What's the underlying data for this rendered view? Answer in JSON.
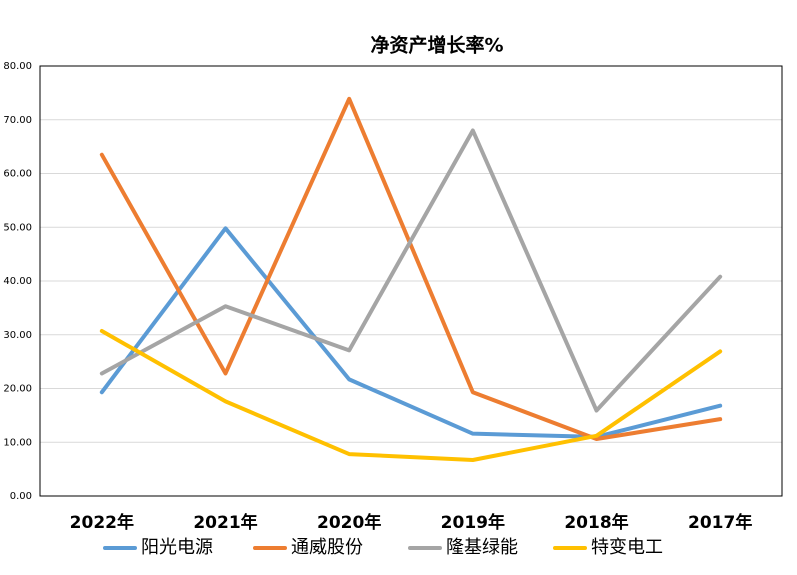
{
  "chart_data": {
    "type": "line",
    "title": "净资产增长率%",
    "categories": [
      "2022年",
      "2021年",
      "2020年",
      "2019年",
      "2018年",
      "2017年"
    ],
    "series": [
      {
        "name": "阳光电源",
        "color": "#5b9bd5",
        "values": [
          19.3,
          49.8,
          21.7,
          11.6,
          11.0,
          16.8
        ]
      },
      {
        "name": "通威股份",
        "color": "#ed7d31",
        "values": [
          63.5,
          22.8,
          73.9,
          19.3,
          10.6,
          14.3
        ]
      },
      {
        "name": "隆基绿能",
        "color": "#a5a5a5",
        "values": [
          22.8,
          35.3,
          27.1,
          68.0,
          15.9,
          40.8
        ]
      },
      {
        "name": "特变电工",
        "color": "#ffc000",
        "values": [
          30.7,
          17.6,
          7.8,
          6.7,
          11.2,
          26.9
        ]
      }
    ],
    "ylim": [
      0,
      80
    ],
    "yticks": [
      {
        "value": 0,
        "label": "0.00"
      },
      {
        "value": 10,
        "label": "10.00"
      },
      {
        "value": 20,
        "label": "20.00"
      },
      {
        "value": 30,
        "label": "30.00"
      },
      {
        "value": 40,
        "label": "40.00"
      },
      {
        "value": 50,
        "label": "50.00"
      },
      {
        "value": 60,
        "label": "60.00"
      },
      {
        "value": 70,
        "label": "70.00"
      },
      {
        "value": 80,
        "label": "80.00"
      }
    ],
    "grid": true,
    "legend": "bottom"
  }
}
